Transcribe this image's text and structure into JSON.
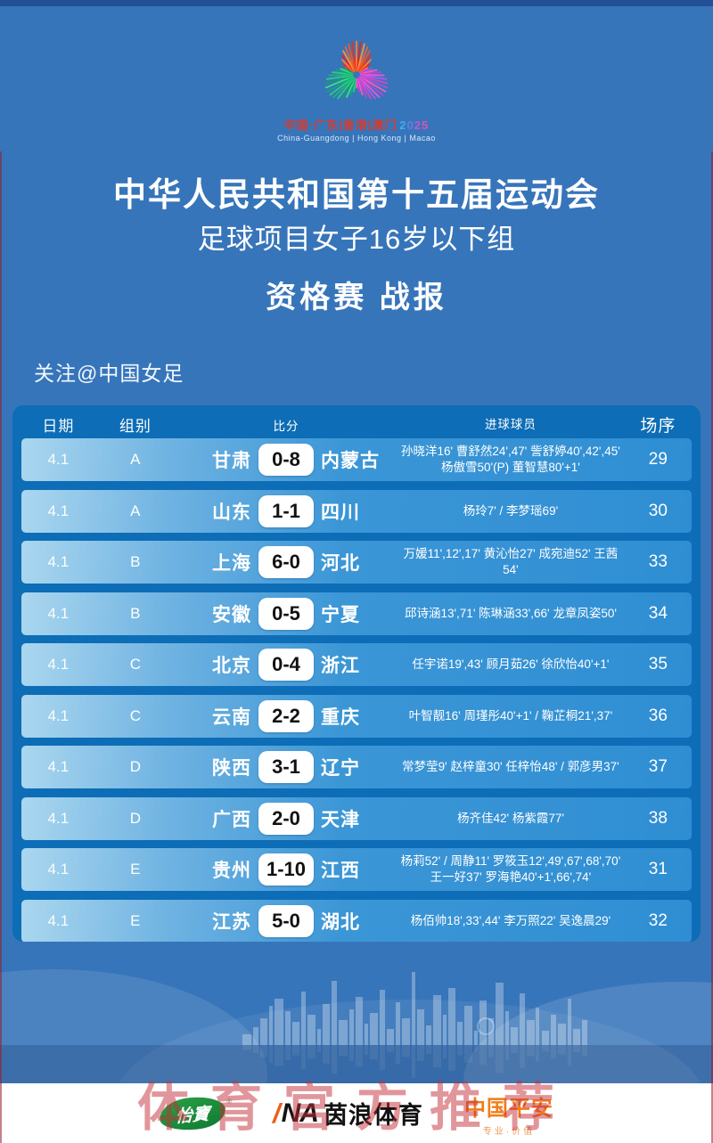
{
  "logo": {
    "line1": "中国·广东|香港|澳门",
    "year": "2025",
    "line2": "China-Guangdong | Hong Kong | Macao"
  },
  "header": {
    "title": "中华人民共和国第十五届运动会",
    "subtitle": "足球项目女子16岁以下组",
    "report_title": "资格赛 战报",
    "follow": "关注@中国女足"
  },
  "table": {
    "headers": [
      "日期",
      "组别",
      "比分",
      "进球球员",
      "场序"
    ],
    "rows": [
      {
        "date": "4.1",
        "group": "A",
        "home": "甘肃",
        "score": "0-8",
        "away": "内蒙古",
        "scorers": "孙晓洋16' 曹舒然24',47' 訾舒婷40',42',45'\n杨傲雪50'(P) 董智慧80'+1'",
        "match_no": "29"
      },
      {
        "date": "4.1",
        "group": "A",
        "home": "山东",
        "score": "1-1",
        "away": "四川",
        "scorers": "杨玲7' / 李梦瑶69'",
        "match_no": "30"
      },
      {
        "date": "4.1",
        "group": "B",
        "home": "上海",
        "score": "6-0",
        "away": "河北",
        "scorers": "万媛11',12',17' 黄沁怡27' 成宛迪52' 王茜54'",
        "match_no": "33"
      },
      {
        "date": "4.1",
        "group": "B",
        "home": "安徽",
        "score": "0-5",
        "away": "宁夏",
        "scorers": "邱诗涵13',71' 陈琳涵33',66' 龙章凤姿50'",
        "match_no": "34"
      },
      {
        "date": "4.1",
        "group": "C",
        "home": "北京",
        "score": "0-4",
        "away": "浙江",
        "scorers": "任宇诺19',43' 顾月茹26' 徐欣怡40'+1'",
        "match_no": "35"
      },
      {
        "date": "4.1",
        "group": "C",
        "home": "云南",
        "score": "2-2",
        "away": "重庆",
        "scorers": "叶智靓16' 周瑾彤40'+1' / 鞠芷桐21',37'",
        "match_no": "36"
      },
      {
        "date": "4.1",
        "group": "D",
        "home": "陕西",
        "score": "3-1",
        "away": "辽宁",
        "scorers": "常梦莹9' 赵梓童30' 任梓怡48' / 郭彦男37'",
        "match_no": "37"
      },
      {
        "date": "4.1",
        "group": "D",
        "home": "广西",
        "score": "2-0",
        "away": "天津",
        "scorers": "杨齐佳42' 杨紫霞77'",
        "match_no": "38"
      },
      {
        "date": "4.1",
        "group": "E",
        "home": "贵州",
        "score": "1-10",
        "away": "江西",
        "scorers": "杨莉52' / 周静11' 罗筱玉12',49',67',68',70'\n王一好37' 罗海艳40'+1',66',74'",
        "match_no": "31"
      },
      {
        "date": "4.1",
        "group": "E",
        "home": "江苏",
        "score": "5-0",
        "away": "湖北",
        "scorers": "杨佰帅18',33',44' 李万照22' 吴逸晨29'",
        "match_no": "32"
      }
    ]
  },
  "footer": {
    "watermark": "体育官方推荐",
    "sponsors": {
      "yibao": {
        "name": "怡寶",
        "reg": "®"
      },
      "ina": {
        "slash": "/",
        "na": "NA",
        "name": "茵浪体育"
      },
      "pingan": {
        "name": "中国平安",
        "tagline": "专业·价值"
      }
    }
  },
  "colors": {
    "background": "#3775ba",
    "panel": "#0d6db6",
    "row_light": "#abd7ef",
    "row_dark": "#2f8ed3",
    "watermark_red": "#c32d37",
    "logo_red": "#d93a2e",
    "yibao_green": "#1d9040",
    "ina_orange": "#e8611c",
    "pingan_orange": "#f07d1a"
  }
}
